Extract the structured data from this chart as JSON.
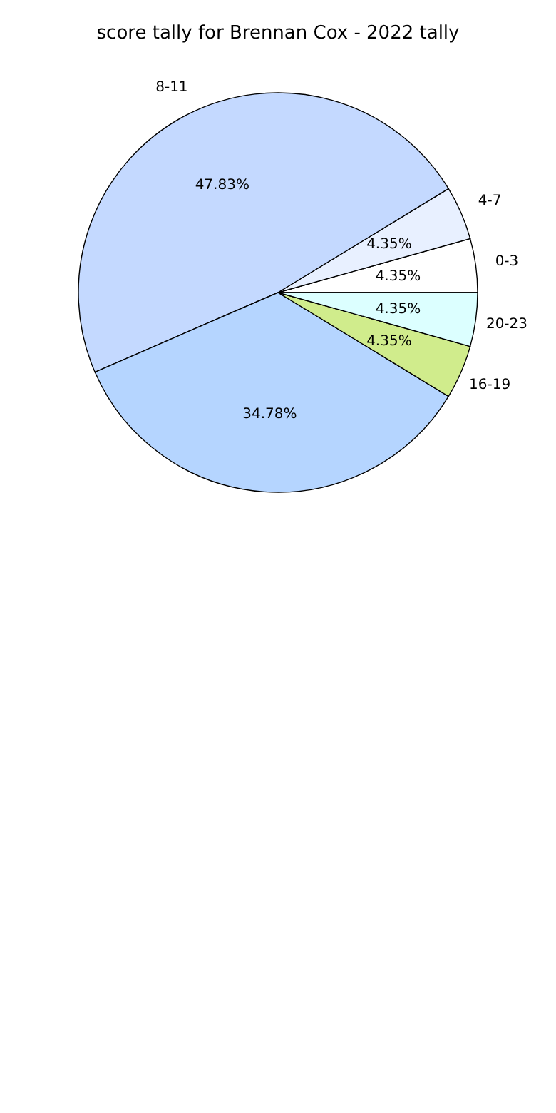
{
  "chart_data": {
    "type": "pie",
    "title": "score tally for Brennan Cox - 2022 tally",
    "categories": [
      "0-3",
      "4-7",
      "8-11",
      null,
      "16-19",
      "20-23"
    ],
    "values": [
      4.35,
      4.35,
      47.83,
      34.78,
      4.35,
      4.35
    ],
    "value_labels": [
      "4.35%",
      "4.35%",
      "47.83%",
      "34.78%",
      "4.35%",
      "4.35%"
    ],
    "colors": [
      "#ffffff",
      "#e8f0ff",
      "#c4d9ff",
      "#b5d5ff",
      "#d0ec8c",
      "#dcffff"
    ]
  }
}
